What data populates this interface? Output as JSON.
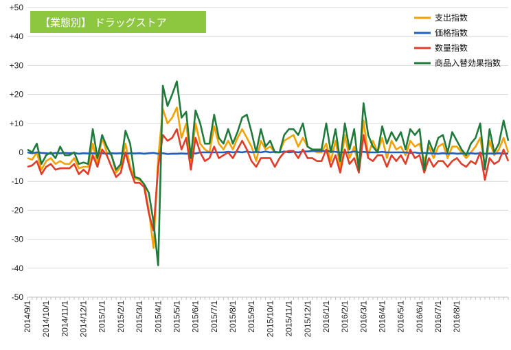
{
  "chart_data": {
    "type": "line",
    "title": "【業態別】 ドラッグストア",
    "title_bg": "#8DC63F",
    "xlabel": "",
    "ylabel": "",
    "ylim": [
      -50,
      50
    ],
    "y_ticks": [
      "-50",
      "-40",
      "-30",
      "-20",
      "-10",
      "0",
      "+10",
      "+20",
      "+30",
      "+40",
      "+50"
    ],
    "x_tick_labels": [
      "2014/9/1",
      "2014/10/1",
      "2014/11/1",
      "2014/12/1",
      "2015/1/1",
      "2015/2/1",
      "2015/3/1",
      "2015/4/1",
      "2015/5/1",
      "2015/6/1",
      "2015/7/1",
      "2015/8/1",
      "2015/9/1",
      "2015/10/1",
      "2015/11/1",
      "2015/12/1",
      "2016/1/1",
      "2016/2/1",
      "2016/3/1",
      "2016/4/1",
      "2016/5/1",
      "2016/6/1",
      "2016/7/1",
      "2016/8/1"
    ],
    "grid": "horizontal",
    "legend_position": "top-right",
    "weeks_per_month": 4,
    "series": [
      {
        "name": "支出指数",
        "color": "#F5A100",
        "values": [
          -2,
          -2.5,
          0,
          -6,
          -3,
          -2,
          -4,
          -3,
          -4,
          -4,
          -2,
          -5.5,
          -5,
          -5,
          3,
          -4,
          5,
          0,
          -1,
          -7,
          -5,
          3,
          -5,
          -9,
          -9.5,
          -11,
          -20,
          -33,
          -2,
          15,
          10,
          12,
          15.5,
          5,
          10,
          -3,
          10,
          3,
          1,
          0,
          9,
          3,
          1,
          4,
          1,
          5,
          8,
          5,
          2,
          -3,
          4,
          1,
          2,
          0,
          0,
          4,
          5,
          6,
          2,
          5,
          2,
          1,
          0,
          0,
          3,
          -3,
          4,
          -5,
          6,
          -2,
          2,
          -5,
          11,
          -1,
          4,
          0,
          5,
          -2,
          4,
          1,
          2,
          -1,
          4,
          2,
          3,
          -3,
          2,
          -2,
          2,
          3,
          -2,
          2,
          2,
          0,
          -2,
          0,
          2,
          5,
          -5,
          4,
          -1,
          1,
          5,
          0
        ]
      },
      {
        "name": "価格指数",
        "color": "#1F5FBF",
        "values": [
          0,
          -0.3,
          0,
          -0.2,
          -0.3,
          -0.5,
          -0.2,
          -0.3,
          -0.2,
          -0.3,
          -0.2,
          -0.5,
          -0.3,
          -0.4,
          -0.3,
          -0.4,
          -0.3,
          -0.5,
          -0.3,
          -0.4,
          -0.3,
          -0.5,
          -0.3,
          -0.4,
          -0.3,
          -0.5,
          -0.3,
          -0.2,
          -0.5,
          -0.3,
          -0.6,
          -0.5,
          -0.5,
          -0.4,
          -0.5,
          -0.3,
          -0.4,
          0,
          0,
          0,
          0,
          0,
          0,
          0.2,
          0,
          0.2,
          0,
          0.3,
          0,
          0.2,
          0,
          0.3,
          0,
          0.2,
          0,
          0.3,
          0,
          0.2,
          0,
          0.3,
          0.3,
          0.5,
          0.5,
          0.5,
          0.5,
          0.3,
          0.2,
          0,
          0,
          0,
          0.3,
          0,
          0.2,
          0,
          0,
          0,
          0.2,
          0,
          0,
          0,
          0,
          0,
          -0.2,
          0,
          -0.3,
          -0.2,
          -0.3,
          -0.4,
          -0.5,
          -0.3,
          -0.5,
          -0.3,
          -0.5,
          -0.4,
          -0.5,
          -0.3,
          -0.5,
          -0.3,
          -0.5,
          -0.4,
          -0.5,
          -0.3,
          -0.5,
          -0.4
        ]
      },
      {
        "name": "数量指数",
        "color": "#E03C28",
        "values": [
          -5,
          -4.5,
          -3,
          -7.5,
          -5,
          -4,
          -6,
          -5.5,
          -5.5,
          -5.5,
          -4,
          -7.5,
          -6,
          -7.5,
          -1,
          -5,
          1,
          -1,
          -5,
          -8.5,
          -7,
          0,
          -6,
          -10.5,
          -10.5,
          -12,
          -21,
          -27,
          -5,
          6,
          4,
          5,
          8,
          1,
          5,
          -6,
          5,
          0,
          -3,
          -2,
          2,
          -2,
          -1,
          0,
          -2,
          1,
          4,
          1,
          -3,
          -5,
          -2,
          -2,
          -2,
          -5,
          -2,
          0,
          0.5,
          0.5,
          -2,
          1,
          -2,
          -2,
          -3,
          -3,
          1,
          -5,
          -1,
          -7,
          1,
          -4,
          -2,
          -7,
          6,
          -2,
          -3,
          -1,
          -1,
          -5,
          -1,
          -3,
          -1,
          -4,
          1,
          -2,
          -1,
          -7,
          -2,
          -5,
          -3,
          -3,
          -5,
          -3,
          -2,
          -4,
          -5,
          -3,
          -4,
          0,
          -9.5,
          -2,
          -4,
          -3,
          1,
          -3
        ]
      },
      {
        "name": "商品入替効果指数",
        "color": "#1F7A3C",
        "values": [
          1,
          0,
          3,
          -4,
          -1,
          0,
          -2,
          2,
          -1,
          -1,
          0,
          -4,
          -3.5,
          -4,
          8,
          -2,
          6,
          2,
          -1,
          -6,
          -4,
          7.5,
          3,
          -8.5,
          -9,
          -11,
          -14,
          -24,
          -39,
          23,
          16,
          20,
          24.5,
          12,
          14,
          -2,
          14.5,
          10,
          3,
          3,
          13,
          5,
          3,
          8,
          3,
          7,
          12,
          13,
          7,
          0,
          8,
          2,
          4,
          0,
          0,
          6,
          8,
          8,
          6,
          10,
          2,
          1,
          1,
          1,
          10,
          0,
          8,
          -3,
          10,
          1,
          8,
          -6,
          17,
          6,
          2,
          0,
          9,
          3,
          7,
          4,
          7,
          1,
          8,
          6,
          8,
          -6,
          4,
          0,
          5,
          6,
          0,
          7,
          4,
          1,
          -1,
          3,
          5,
          10,
          -6,
          8,
          0,
          3,
          11,
          4
        ]
      }
    ]
  }
}
